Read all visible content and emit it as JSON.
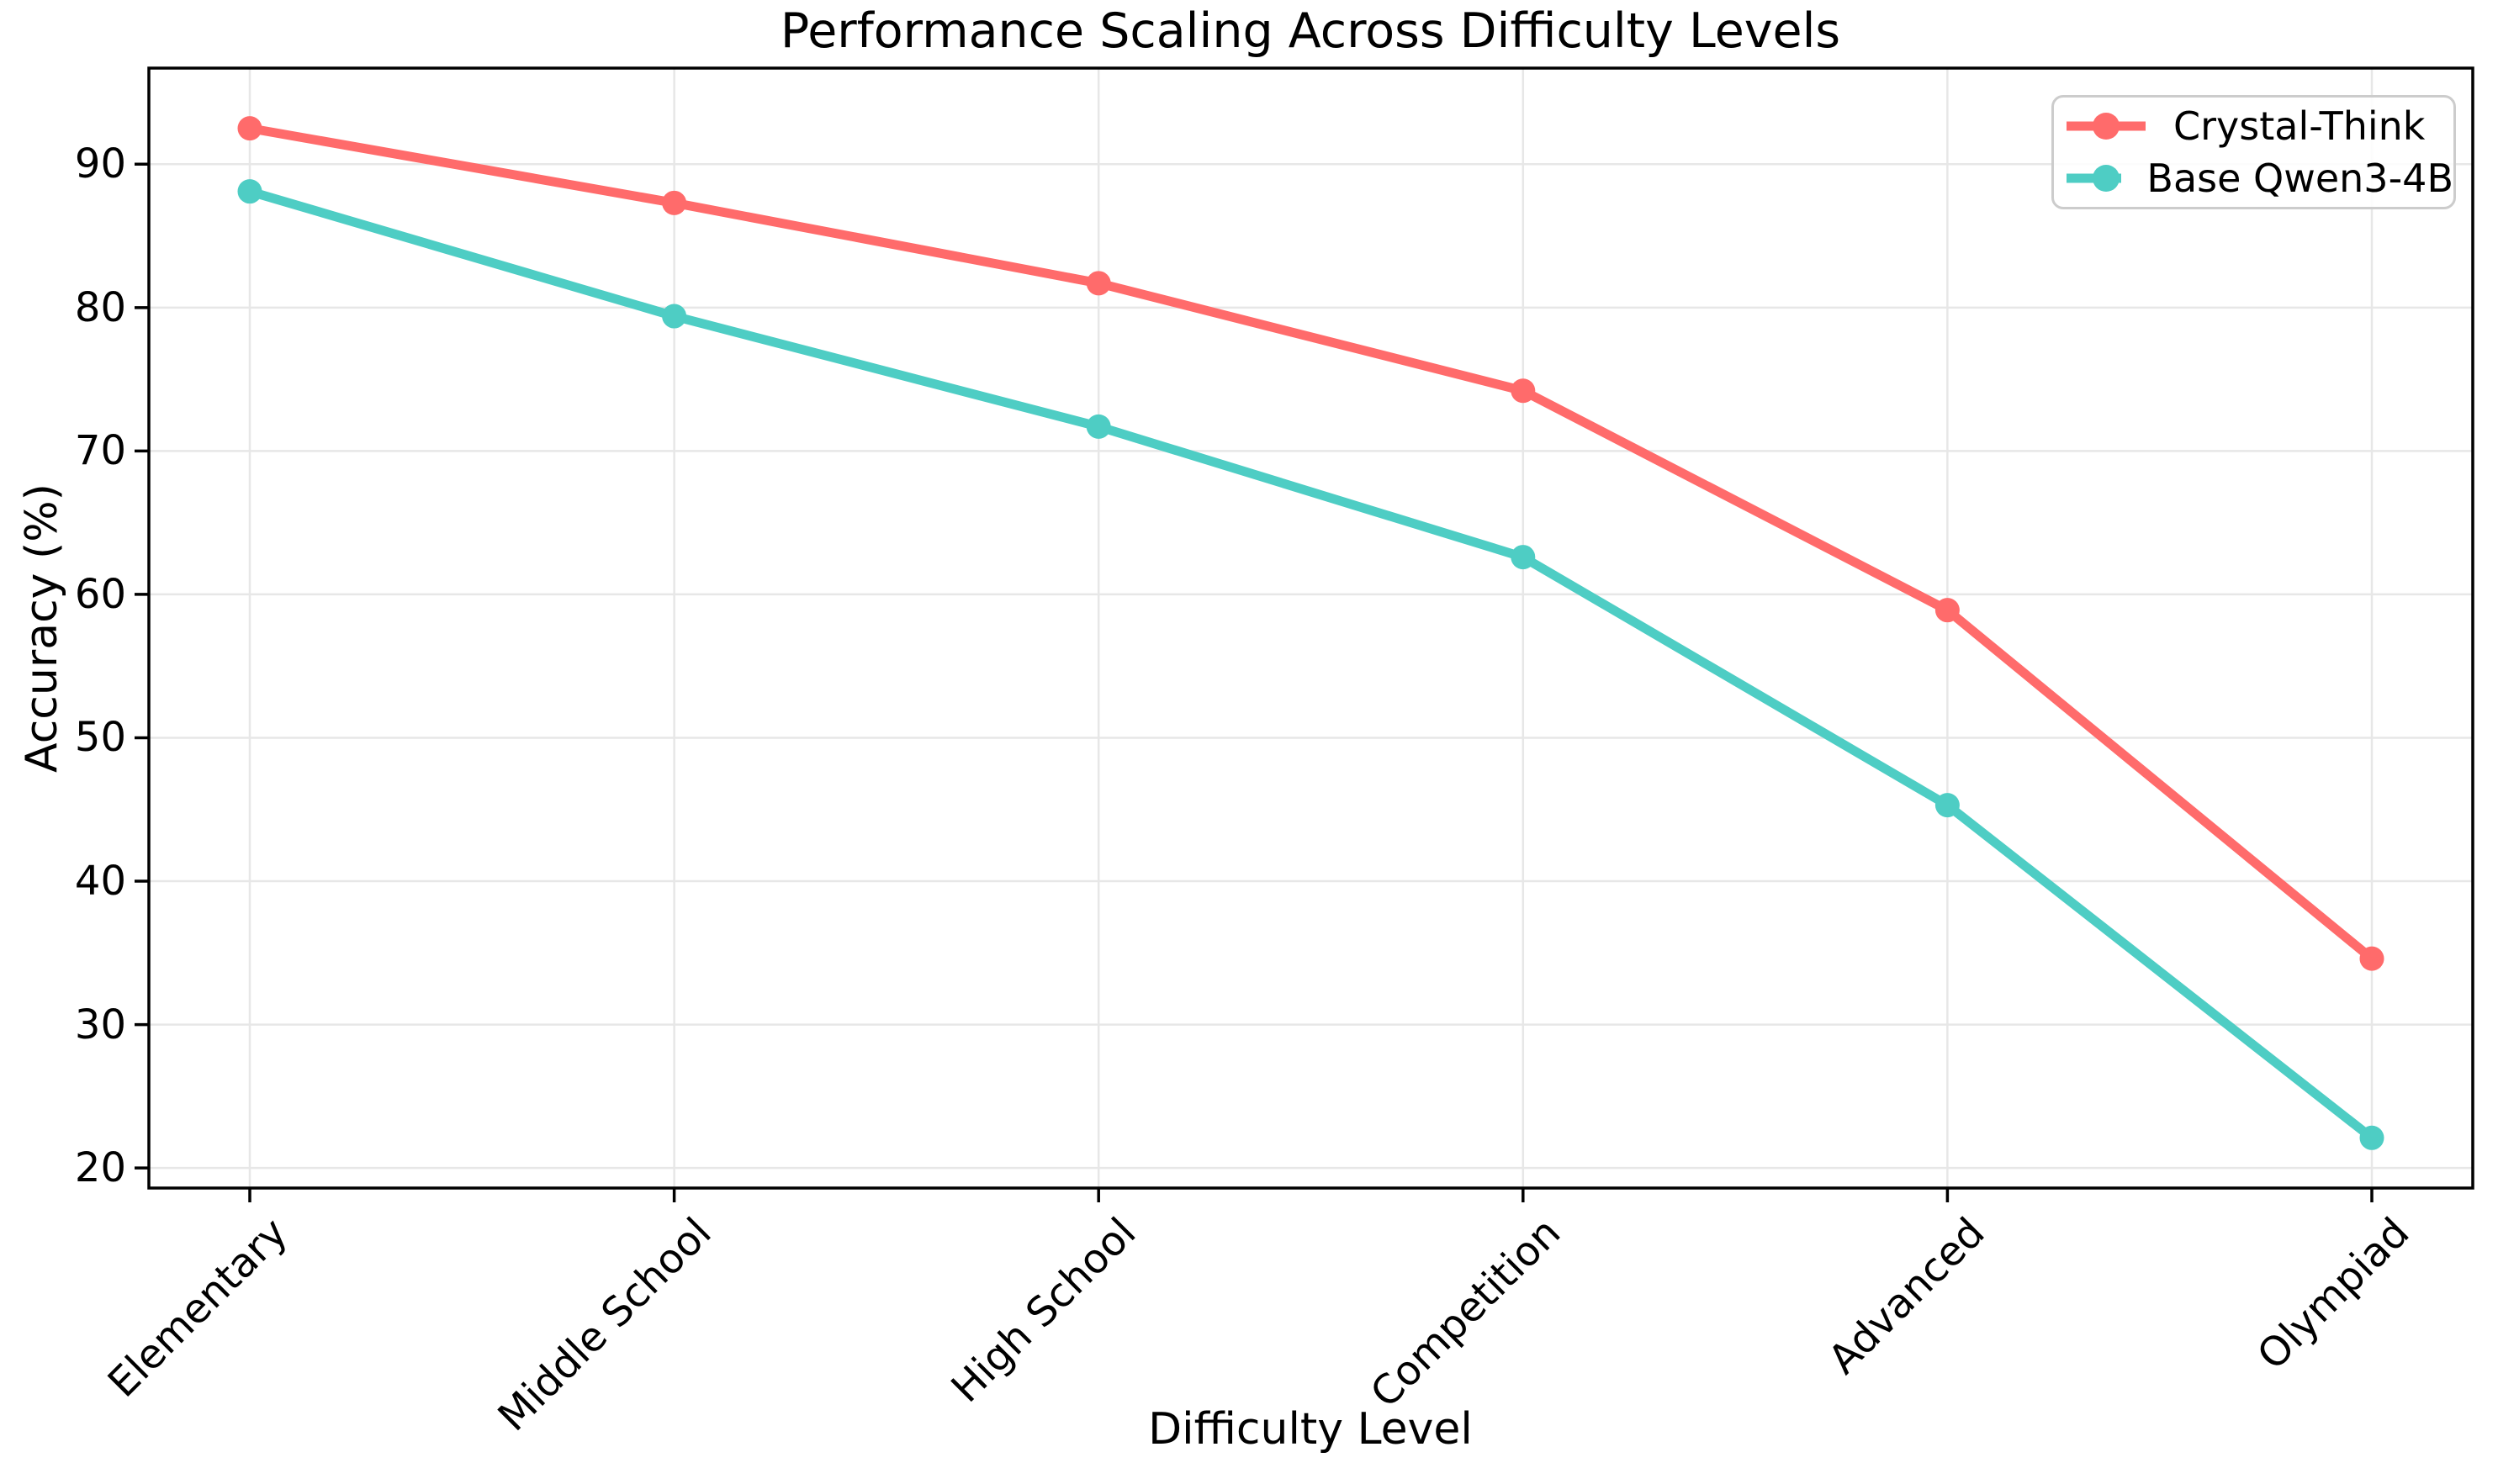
{
  "chart_data": {
    "type": "line",
    "title": "Performance Scaling Across Difficulty Levels",
    "xlabel": "Difficulty Level",
    "ylabel": "Accuracy (%)",
    "categories": [
      "Elementary",
      "Middle School",
      "High School",
      "Competition",
      "Advanced",
      "Olympiad"
    ],
    "series": [
      {
        "name": "Crystal-Think",
        "color": "#FF6B6B",
        "values": [
          92.5,
          87.3,
          81.7,
          74.2,
          58.9,
          34.6
        ]
      },
      {
        "name": "Base Qwen3-4B",
        "color": "#4ECDC4",
        "values": [
          88.1,
          79.4,
          71.7,
          62.6,
          45.3,
          22.1
        ]
      }
    ],
    "yticks": [
      20,
      30,
      40,
      50,
      60,
      70,
      80,
      90
    ],
    "ylim": [
      18.6,
      96.7
    ],
    "grid": true,
    "grid_color": "#e7e7e7",
    "axis_color": "#000000",
    "legend_position": "upper right",
    "xtick_rotation": 45
  }
}
